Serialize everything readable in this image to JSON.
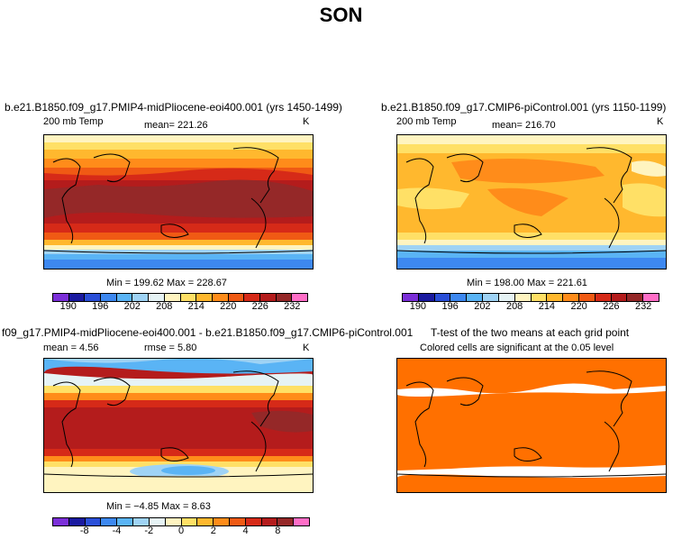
{
  "title": "SON",
  "panels": {
    "top_left": {
      "title": "b.e21.B1850.f09_g17.PMIP4-midPliocene-eoi400.001 (yrs 1450-1499)",
      "variable": "200 mb Temp",
      "mean_text": "mean= 221.26",
      "units": "K",
      "minmax": "Min = 199.62 Max = 228.67"
    },
    "top_right": {
      "title": "b.e21.B1850.f09_g17.CMIP6-piControl.001 (yrs 1150-1199)",
      "variable": "200 mb Temp",
      "mean_text": "mean= 216.70",
      "units": "K",
      "minmax": "Min = 198.00 Max = 221.61"
    },
    "bottom_left": {
      "title": "f09_g17.PMIP4-midPliocene-eoi400.001 - b.e21.B1850.f09_g17.CMIP6-piControl.001",
      "mean_text": "mean =   4.56",
      "rmse_text": "rmse =   5.80",
      "units": "K",
      "minmax": "Min = −4.85 Max =   8.63"
    },
    "bottom_right": {
      "title": "T-test of the two means at each grid point",
      "subtitle": "Colored cells are significant at the 0.05 level"
    }
  },
  "colorbar_colors": [
    "#7b2fd8",
    "#1a1aa0",
    "#2a4fd8",
    "#3d88f0",
    "#5ab4f5",
    "#9fd3f5",
    "#e6f3f5",
    "#fff4c0",
    "#ffe066",
    "#ffb82e",
    "#ff8c1a",
    "#f05a14",
    "#d62a18",
    "#b41c1c",
    "#952828",
    "#ff6ec7"
  ],
  "colorbar_top_ticks": [
    "190",
    "196",
    "202",
    "208",
    "214",
    "220",
    "226",
    "232"
  ],
  "colorbar_diff_ticks": [
    "-8",
    "-4",
    "-2",
    "0",
    "2",
    "4",
    "8"
  ],
  "ttest_color": "#ff7000"
}
